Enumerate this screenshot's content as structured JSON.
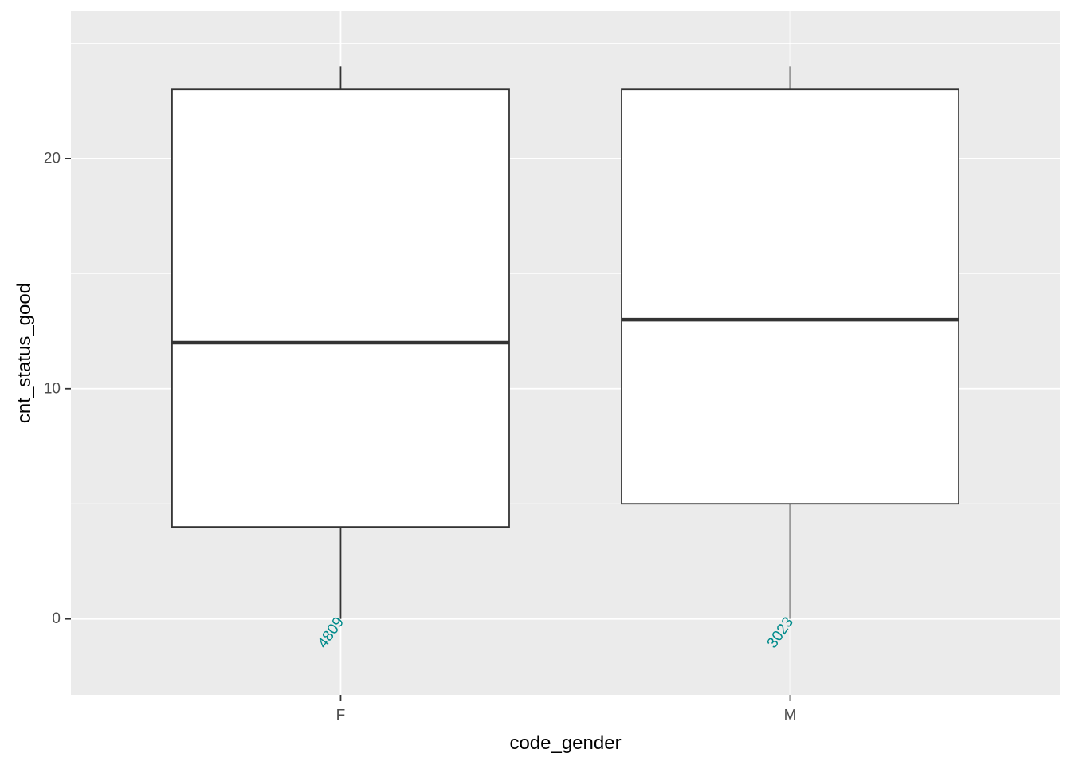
{
  "chart_data": {
    "type": "boxplot",
    "xlabel": "code_gender",
    "ylabel": "cnt_status_good",
    "categories": [
      "F",
      "M"
    ],
    "boxes": [
      {
        "category": "F",
        "whisker_low": 0,
        "q1": 4,
        "median": 12,
        "q3": 23,
        "whisker_high": 24,
        "count_label": "4809"
      },
      {
        "category": "M",
        "whisker_low": 0,
        "q1": 5,
        "median": 13,
        "q3": 23,
        "whisker_high": 24,
        "count_label": "3023"
      }
    ],
    "ylim": [
      -3.3,
      26.4
    ],
    "yticks": [
      0,
      10,
      20
    ],
    "grid": true,
    "count_label_color": "#008b8b",
    "panel_background": "#ebebeb",
    "box_fill": "#ffffff",
    "box_stroke": "#333333"
  }
}
